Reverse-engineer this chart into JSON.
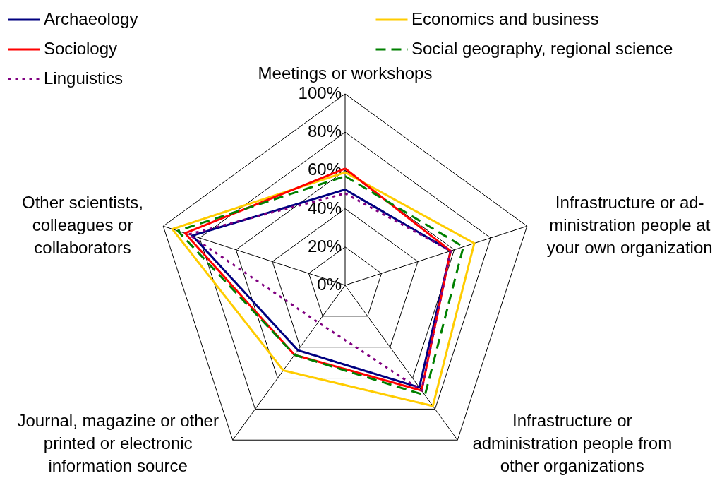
{
  "chart_data": {
    "type": "radar",
    "categories": [
      "Meetings or workshops",
      "Infrastructure or ad-\nministration people at\nyour own organization",
      "Infrastructure or\nadministration people from\nother organizations",
      "Journal, magazine or other\nprinted or electronic\ninformation source",
      "Other scientists,\ncolleagues or\ncollaborators"
    ],
    "series": [
      {
        "name": "Archaeology",
        "color": "#000080",
        "line_style": "solid",
        "values": [
          50,
          58,
          66,
          42,
          84
        ]
      },
      {
        "name": "Economics and business",
        "color": "#ffcc00",
        "line_style": "solid",
        "values": [
          59,
          71,
          78,
          55,
          95
        ]
      },
      {
        "name": "Sociology",
        "color": "#ff0000",
        "line_style": "solid",
        "values": [
          61,
          58,
          68,
          45,
          88
        ]
      },
      {
        "name": "Social geography, regional science",
        "color": "#008000",
        "line_style": "dashed",
        "values": [
          57,
          65,
          71,
          45,
          92
        ]
      },
      {
        "name": "Linguistics",
        "color": "#800080",
        "line_style": "dotted",
        "values": [
          48,
          58,
          68,
          24,
          86
        ]
      }
    ],
    "ylim": [
      0,
      100
    ],
    "yticks": [
      {
        "value": 0,
        "label": "0%"
      },
      {
        "value": 20,
        "label": "20%"
      },
      {
        "value": 40,
        "label": "40%"
      },
      {
        "value": 60,
        "label": "60%"
      },
      {
        "value": 80,
        "label": "80%"
      },
      {
        "value": 100,
        "label": "100%"
      }
    ],
    "grid": true,
    "legend": "top",
    "marker": "none"
  }
}
